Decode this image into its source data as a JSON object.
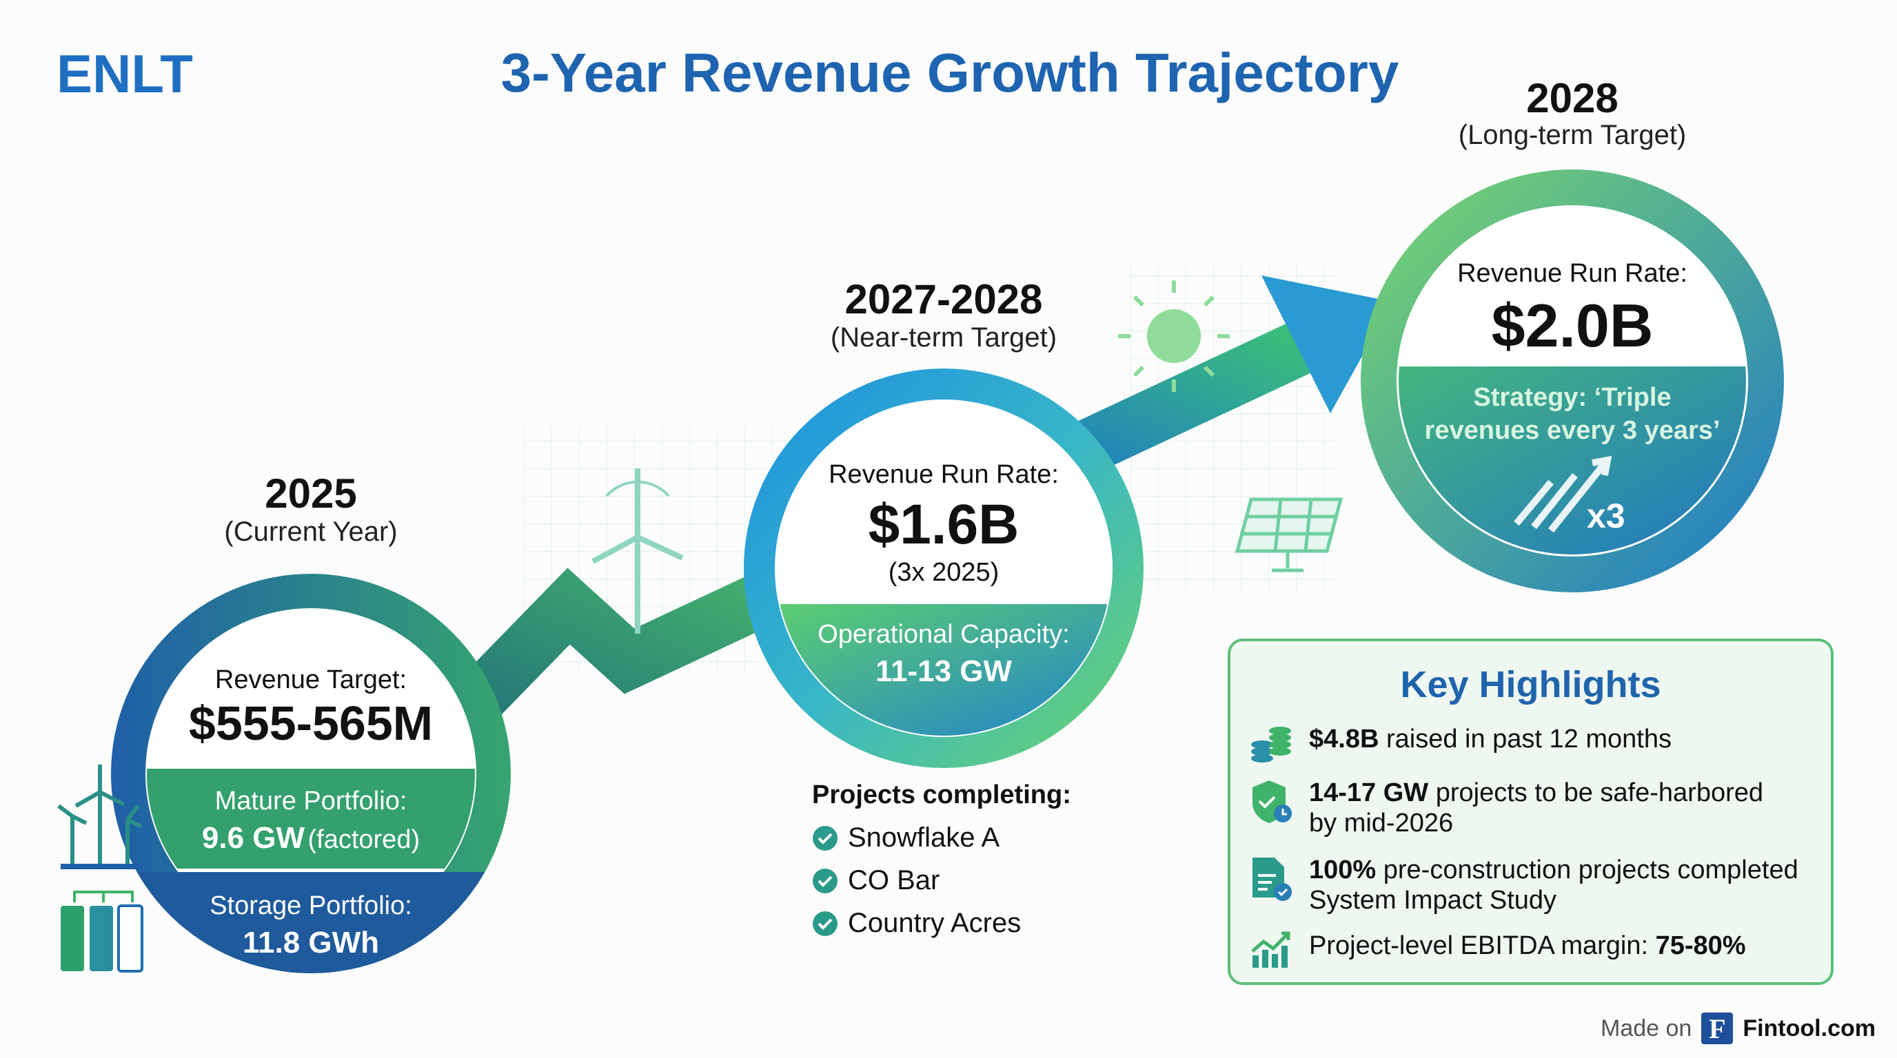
{
  "header": {
    "brand": "ENLT",
    "title": "3-Year Revenue Growth Trajectory"
  },
  "stages": [
    {
      "year": "2025",
      "subtitle": "(Current Year)",
      "metric_label": "Revenue Target:",
      "metric_value": "$555-565M",
      "band1_label": "Mature Portfolio:",
      "band1_value": "9.6 GW",
      "band1_note": "(factored)",
      "band2_label": "Storage Portfolio:",
      "band2_value": "11.8 GWh"
    },
    {
      "year": "2027-2028",
      "subtitle": "(Near-term Target)",
      "metric_label": "Revenue Run Rate:",
      "metric_value": "$1.6B",
      "metric_note": "(3x 2025)",
      "band1_label": "Operational Capacity:",
      "band1_value": "11-13 GW"
    },
    {
      "year": "2028",
      "subtitle": "(Long-term Target)",
      "metric_label": "Revenue Run Rate:",
      "metric_value": "$2.0B",
      "band1_label": "Strategy: ‘Triple",
      "band1_label2": "revenues every 3 years’",
      "multiplier": "x3"
    }
  ],
  "projects": {
    "title": "Projects completing:",
    "items": [
      "Snowflake A",
      "CO Bar",
      "Country Acres"
    ]
  },
  "highlights": {
    "title": "Key Highlights",
    "items": [
      {
        "icon": "coins-icon",
        "bold": "$4.8B",
        "text": " raised in past 12 months"
      },
      {
        "icon": "shield-clock-icon",
        "bold": "14-17 GW",
        "text": " projects to be safe-harbored",
        "text2": "by mid-2026"
      },
      {
        "icon": "document-check-icon",
        "bold": "100%",
        "text": " pre-construction projects completed",
        "text2": "System Impact Study"
      },
      {
        "icon": "chart-up-icon",
        "text": "Project-level EBITDA margin: ",
        "bold": "75-80%"
      }
    ]
  },
  "footer": {
    "made_on": "Made on",
    "logo_letter": "F",
    "brand": "Fintool.com"
  },
  "colors": {
    "blue": "#1f5fa8",
    "green": "#3fb36a",
    "teal": "#2a8f86",
    "title": "#1e64b0"
  }
}
